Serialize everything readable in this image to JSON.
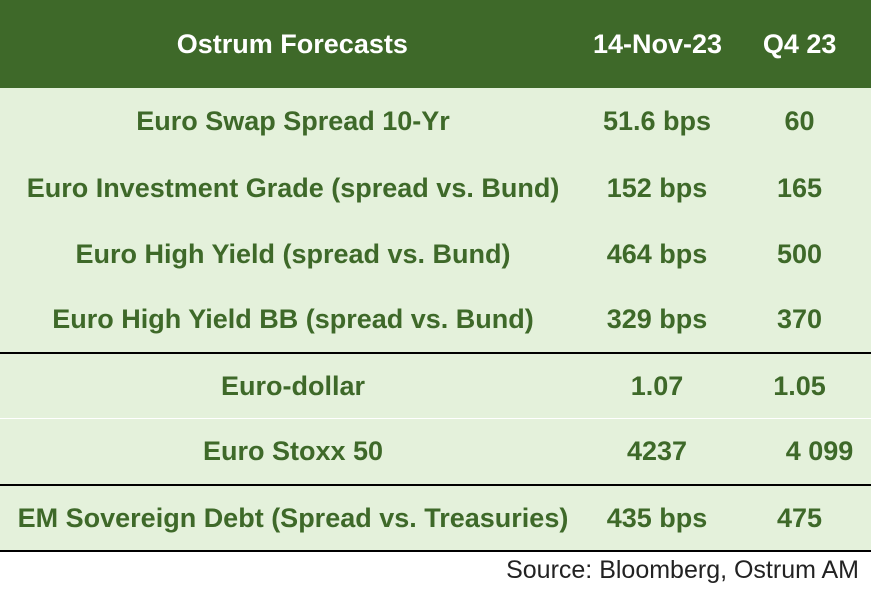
{
  "header": {
    "title": "Ostrum Forecasts",
    "col_date": "14-Nov-23",
    "col_q4": "Q4 23"
  },
  "rows": [
    {
      "label": "Euro Swap Spread 10-Yr",
      "current": "51.6 bps",
      "forecast": "60"
    },
    {
      "label": "Euro Investment Grade (spread vs. Bund)",
      "current": "152 bps",
      "forecast": "165"
    },
    {
      "label": "Euro High Yield (spread vs. Bund)",
      "current": "464 bps",
      "forecast": "500"
    },
    {
      "label": "Euro High Yield BB (spread vs. Bund)",
      "current": "329 bps",
      "forecast": "370"
    },
    {
      "label": "Euro-dollar",
      "current": "1.07",
      "forecast": "1.05"
    },
    {
      "label": "Euro Stoxx 50",
      "current": "4237",
      "forecast": "4 099"
    },
    {
      "label": "EM Sovereign Debt  (Spread vs. Treasuries)",
      "current": "435 bps",
      "forecast": "475"
    }
  ],
  "source": "Source: Bloomberg, Ostrum AM",
  "colors": {
    "header_bg": "#3e6929",
    "row_bg": "#e4f1db",
    "text_green": "#3e6929"
  }
}
